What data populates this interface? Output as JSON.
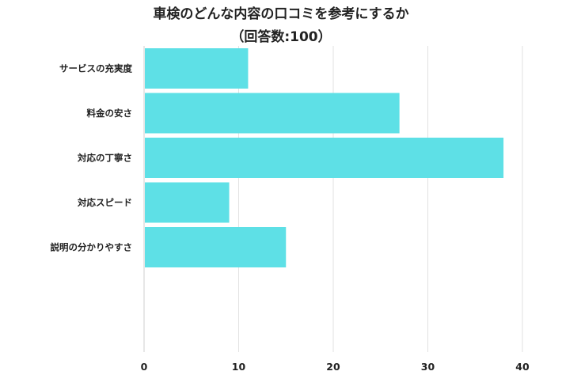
{
  "chart_data": {
    "type": "bar",
    "orientation": "horizontal",
    "title": "車検のどんな内容の口コミを参考にするか",
    "subtitle": "（回答数:100）",
    "categories": [
      "サービスの充実度",
      "料金の安さ",
      "対応の丁寧さ",
      "対応スピード",
      "説明の分かりやすさ"
    ],
    "values": [
      11,
      27,
      38,
      9,
      15
    ],
    "xlim": [
      0,
      40
    ],
    "xticks": [
      0,
      10,
      20,
      30,
      40
    ],
    "grid": true,
    "bar_color": "#5ee0e6",
    "grid_color": "#e2e2e2"
  }
}
